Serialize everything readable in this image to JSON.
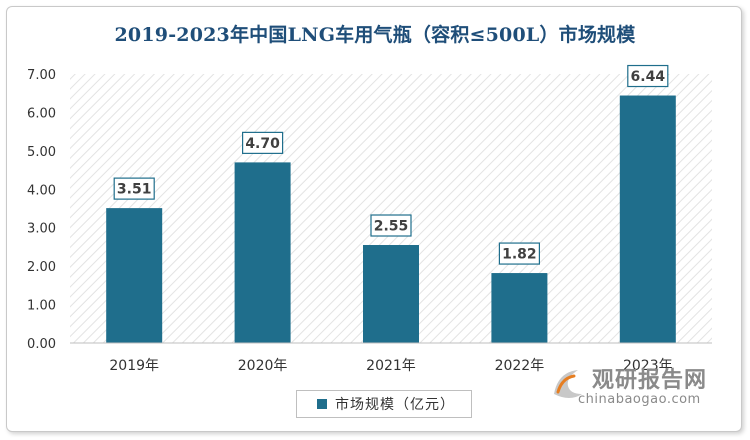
{
  "chart_data": {
    "type": "bar",
    "title": "2019-2023年中国LNG车用气瓶（容积≤500L）市场规模",
    "categories": [
      "2019年",
      "2020年",
      "2021年",
      "2022年",
      "2023年"
    ],
    "series": [
      {
        "name": "市场规模（亿元）",
        "values": [
          3.51,
          4.7,
          2.55,
          1.82,
          6.44
        ]
      }
    ],
    "value_labels": [
      "3.51",
      "4.70",
      "2.55",
      "1.82",
      "6.44"
    ],
    "y_ticks": [
      "0.00",
      "1.00",
      "2.00",
      "3.00",
      "4.00",
      "5.00",
      "6.00",
      "7.00"
    ],
    "ylim": [
      0,
      7
    ],
    "xlabel": "",
    "ylabel": "",
    "grid": false,
    "legend_position": "bottom",
    "bar_color": "#1f6e8c",
    "title_color": "#1f4e79"
  },
  "watermark": {
    "cn": "观研报告网",
    "en": "chinabaogao.com"
  }
}
